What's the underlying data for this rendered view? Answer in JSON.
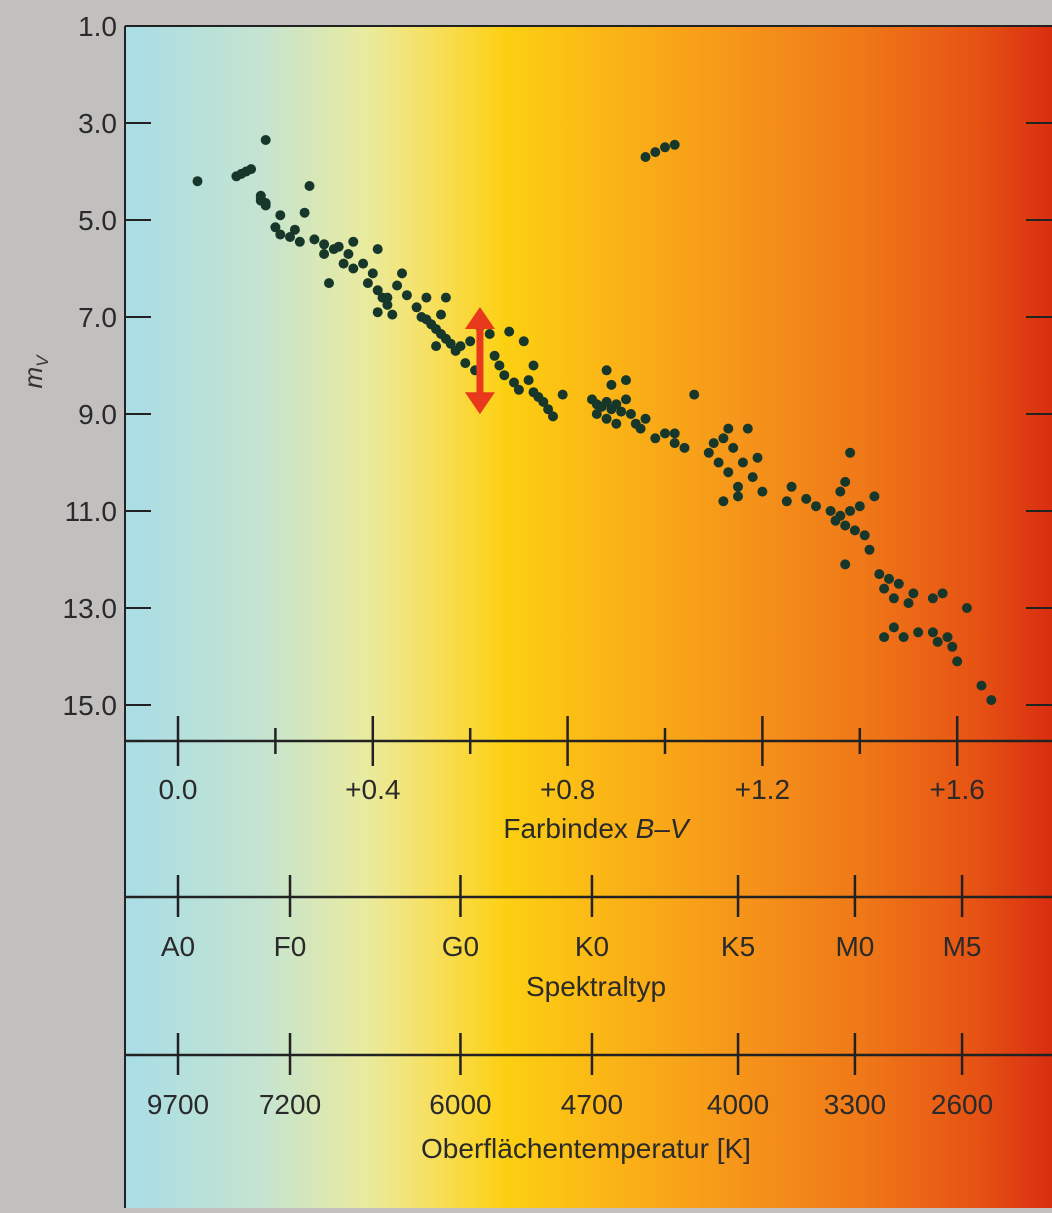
{
  "chart_data": {
    "type": "scatter",
    "title": "",
    "ylabel_main": "m",
    "ylabel_sub": "V",
    "y_axis": {
      "range": [
        1.0,
        16.0
      ],
      "inverted": true,
      "ticks": [
        1.0,
        3.0,
        5.0,
        7.0,
        9.0,
        11.0,
        13.0,
        15.0
      ],
      "tick_labels": [
        "1.0",
        "3.0",
        "5.0",
        "7.0",
        "9.0",
        "11.0",
        "13.0",
        "15.0"
      ]
    },
    "x_axis": {
      "label_plain": "Farbindex ",
      "label_italic": "B–V",
      "range": [
        -0.1,
        1.8
      ],
      "ticks": [
        0.0,
        0.2,
        0.4,
        0.6,
        0.8,
        1.0,
        1.2,
        1.4,
        1.6,
        1.8
      ],
      "major_ticks": [
        0.0,
        0.4,
        0.8,
        1.2,
        1.6
      ],
      "tick_labels": [
        "0.0",
        "+0.4",
        "+0.8",
        "+1.2",
        "+1.6"
      ]
    },
    "spectral_axis": {
      "label": "Spektraltyp",
      "ticks": [
        {
          "bv": 0.0,
          "label": "A0"
        },
        {
          "bv": 0.23,
          "label": "F0"
        },
        {
          "bv": 0.58,
          "label": "G0"
        },
        {
          "bv": 0.85,
          "label": "K0"
        },
        {
          "bv": 1.15,
          "label": "K5"
        },
        {
          "bv": 1.39,
          "label": "M0"
        },
        {
          "bv": 1.61,
          "label": "M5"
        }
      ]
    },
    "temperature_axis": {
      "label": "Oberflächentemperatur [K]",
      "ticks": [
        {
          "bv": 0.0,
          "label": "9700"
        },
        {
          "bv": 0.23,
          "label": "7200"
        },
        {
          "bv": 0.58,
          "label": "6000"
        },
        {
          "bv": 0.85,
          "label": "4700"
        },
        {
          "bv": 1.15,
          "label": "4000"
        },
        {
          "bv": 1.39,
          "label": "3300"
        },
        {
          "bv": 1.61,
          "label": "2600"
        }
      ]
    },
    "annotation": {
      "type": "double-arrow",
      "bv": 0.62,
      "mv_from": 7.0,
      "mv_to": 8.8,
      "color": "#e8391c"
    },
    "series": [
      {
        "marker_color": "#17372b",
        "points": [
          [
            0.04,
            4.2
          ],
          [
            0.12,
            4.1
          ],
          [
            0.13,
            4.05
          ],
          [
            0.14,
            4.0
          ],
          [
            0.15,
            3.95
          ],
          [
            0.17,
            4.5
          ],
          [
            0.17,
            4.6
          ],
          [
            0.18,
            4.7
          ],
          [
            0.17,
            4.55
          ],
          [
            0.18,
            4.65
          ],
          [
            0.18,
            3.35
          ],
          [
            0.21,
            4.9
          ],
          [
            0.2,
            5.15
          ],
          [
            0.21,
            5.3
          ],
          [
            0.24,
            5.2
          ],
          [
            0.26,
            4.85
          ],
          [
            0.27,
            4.3
          ],
          [
            0.23,
            5.35
          ],
          [
            0.25,
            5.45
          ],
          [
            0.28,
            5.4
          ],
          [
            0.3,
            5.5
          ],
          [
            0.32,
            5.6
          ],
          [
            0.33,
            5.55
          ],
          [
            0.35,
            5.7
          ],
          [
            0.3,
            5.7
          ],
          [
            0.34,
            5.9
          ],
          [
            0.36,
            6.0
          ],
          [
            0.38,
            5.9
          ],
          [
            0.4,
            6.1
          ],
          [
            0.31,
            6.3
          ],
          [
            0.36,
            5.45
          ],
          [
            0.41,
            5.6
          ],
          [
            0.39,
            6.3
          ],
          [
            0.41,
            6.45
          ],
          [
            0.42,
            6.6
          ],
          [
            0.43,
            6.75
          ],
          [
            0.41,
            6.9
          ],
          [
            0.44,
            6.95
          ],
          [
            0.43,
            6.6
          ],
          [
            0.45,
            6.35
          ],
          [
            0.47,
            6.55
          ],
          [
            0.46,
            6.1
          ],
          [
            0.49,
            6.8
          ],
          [
            0.5,
            7.0
          ],
          [
            0.51,
            7.05
          ],
          [
            0.52,
            7.15
          ],
          [
            0.53,
            7.25
          ],
          [
            0.54,
            7.35
          ],
          [
            0.55,
            7.45
          ],
          [
            0.56,
            7.55
          ],
          [
            0.58,
            7.6
          ],
          [
            0.6,
            7.5
          ],
          [
            0.57,
            7.7
          ],
          [
            0.53,
            7.6
          ],
          [
            0.51,
            6.6
          ],
          [
            0.54,
            6.95
          ],
          [
            0.55,
            6.6
          ],
          [
            0.59,
            7.95
          ],
          [
            0.61,
            8.1
          ],
          [
            0.62,
            7.2
          ],
          [
            0.64,
            7.35
          ],
          [
            0.65,
            7.8
          ],
          [
            0.66,
            8.0
          ],
          [
            0.68,
            7.3
          ],
          [
            0.69,
            8.35
          ],
          [
            0.7,
            8.5
          ],
          [
            0.72,
            8.3
          ],
          [
            0.73,
            8.55
          ],
          [
            0.74,
            8.65
          ],
          [
            0.75,
            8.75
          ],
          [
            0.76,
            8.9
          ],
          [
            0.77,
            9.05
          ],
          [
            0.73,
            8.0
          ],
          [
            0.79,
            8.6
          ],
          [
            0.71,
            7.5
          ],
          [
            0.67,
            8.2
          ],
          [
            0.85,
            8.7
          ],
          [
            0.86,
            8.8
          ],
          [
            0.87,
            8.85
          ],
          [
            0.88,
            8.75
          ],
          [
            0.89,
            8.9
          ],
          [
            0.9,
            8.8
          ],
          [
            0.91,
            8.95
          ],
          [
            0.92,
            8.7
          ],
          [
            0.86,
            9.0
          ],
          [
            0.88,
            9.1
          ],
          [
            0.9,
            9.2
          ],
          [
            0.93,
            9.0
          ],
          [
            0.94,
            9.2
          ],
          [
            0.95,
            9.3
          ],
          [
            0.96,
            9.1
          ],
          [
            0.92,
            8.3
          ],
          [
            0.88,
            8.1
          ],
          [
            0.89,
            8.4
          ],
          [
            0.98,
            9.5
          ],
          [
            1.0,
            9.4
          ],
          [
            1.02,
            9.6
          ],
          [
            1.04,
            9.7
          ],
          [
            1.02,
            9.4
          ],
          [
            1.06,
            8.6
          ],
          [
            0.96,
            3.7
          ],
          [
            0.98,
            3.6
          ],
          [
            1.0,
            3.5
          ],
          [
            1.02,
            3.45
          ],
          [
            1.09,
            9.8
          ],
          [
            1.1,
            9.6
          ],
          [
            1.11,
            10.0
          ],
          [
            1.12,
            9.5
          ],
          [
            1.13,
            10.2
          ],
          [
            1.14,
            9.7
          ],
          [
            1.15,
            10.5
          ],
          [
            1.16,
            10.0
          ],
          [
            1.18,
            10.3
          ],
          [
            1.19,
            9.9
          ],
          [
            1.2,
            10.6
          ],
          [
            1.17,
            9.3
          ],
          [
            1.13,
            9.3
          ],
          [
            1.12,
            10.8
          ],
          [
            1.15,
            10.7
          ],
          [
            1.25,
            10.8
          ],
          [
            1.26,
            10.5
          ],
          [
            1.29,
            10.75
          ],
          [
            1.31,
            10.9
          ],
          [
            1.34,
            11.0
          ],
          [
            1.35,
            11.2
          ],
          [
            1.36,
            11.1
          ],
          [
            1.37,
            11.3
          ],
          [
            1.38,
            11.0
          ],
          [
            1.39,
            11.4
          ],
          [
            1.36,
            10.6
          ],
          [
            1.37,
            10.4
          ],
          [
            1.4,
            10.9
          ],
          [
            1.41,
            11.5
          ],
          [
            1.42,
            11.8
          ],
          [
            1.43,
            10.7
          ],
          [
            1.38,
            9.8
          ],
          [
            1.37,
            12.1
          ],
          [
            1.44,
            12.3
          ],
          [
            1.45,
            12.6
          ],
          [
            1.46,
            12.4
          ],
          [
            1.47,
            12.8
          ],
          [
            1.48,
            12.5
          ],
          [
            1.5,
            12.9
          ],
          [
            1.51,
            12.7
          ],
          [
            1.55,
            12.8
          ],
          [
            1.57,
            12.7
          ],
          [
            1.47,
            13.4
          ],
          [
            1.49,
            13.6
          ],
          [
            1.52,
            13.5
          ],
          [
            1.56,
            13.7
          ],
          [
            1.58,
            13.6
          ],
          [
            1.6,
            14.1
          ],
          [
            1.62,
            13.0
          ],
          [
            1.65,
            14.6
          ],
          [
            1.67,
            14.9
          ],
          [
            1.45,
            13.6
          ],
          [
            1.55,
            13.5
          ],
          [
            1.59,
            13.8
          ]
        ]
      }
    ]
  }
}
